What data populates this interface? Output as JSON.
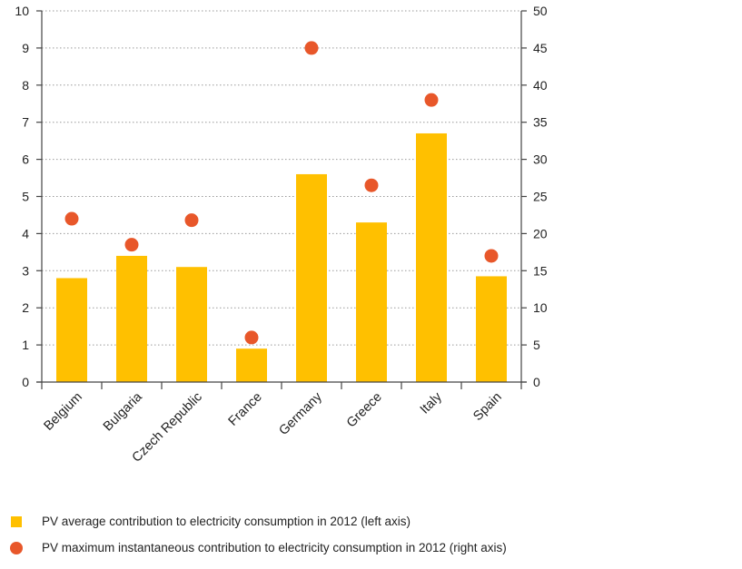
{
  "chart_data": {
    "type": "bar",
    "categories": [
      "Belgium",
      "Bulgaria",
      "Czech Republic",
      "France",
      "Germany",
      "Greece",
      "Italy",
      "Spain"
    ],
    "series": [
      {
        "name": "PV average contribution to electricity consumption in 2012 (left axis)",
        "type": "bar",
        "axis": "left",
        "color": "#FFC000",
        "values": [
          2.8,
          3.4,
          3.1,
          0.9,
          5.6,
          4.3,
          6.7,
          2.85
        ]
      },
      {
        "name": "PV maximum instantaneous contribution to electricity consumption in 2012 (right axis)",
        "type": "scatter",
        "axis": "right",
        "color": "#E8572A",
        "values": [
          22,
          18.5,
          21.8,
          6,
          45,
          26.5,
          38,
          17
        ]
      }
    ],
    "y_left": {
      "range": [
        0,
        10
      ],
      "ticks": [
        "0",
        "1",
        "2",
        "3",
        "4",
        "5",
        "6",
        "7",
        "8",
        "9",
        "10"
      ]
    },
    "y_right": {
      "range": [
        0,
        50
      ],
      "ticks": [
        "0",
        "5",
        "10",
        "15",
        "20",
        "25",
        "30",
        "35",
        "40",
        "45",
        "50"
      ]
    },
    "grid": "horizontal-dotted",
    "legend_placement": "bottom-left",
    "title": "",
    "xlabel": "",
    "ylabel": ""
  },
  "legend": {
    "bar_label": "PV average contribution to electricity consumption in 2012 (left axis)",
    "dot_label": "PV maximum instantaneous contribution to electricity consumption in 2012 (right axis)"
  }
}
